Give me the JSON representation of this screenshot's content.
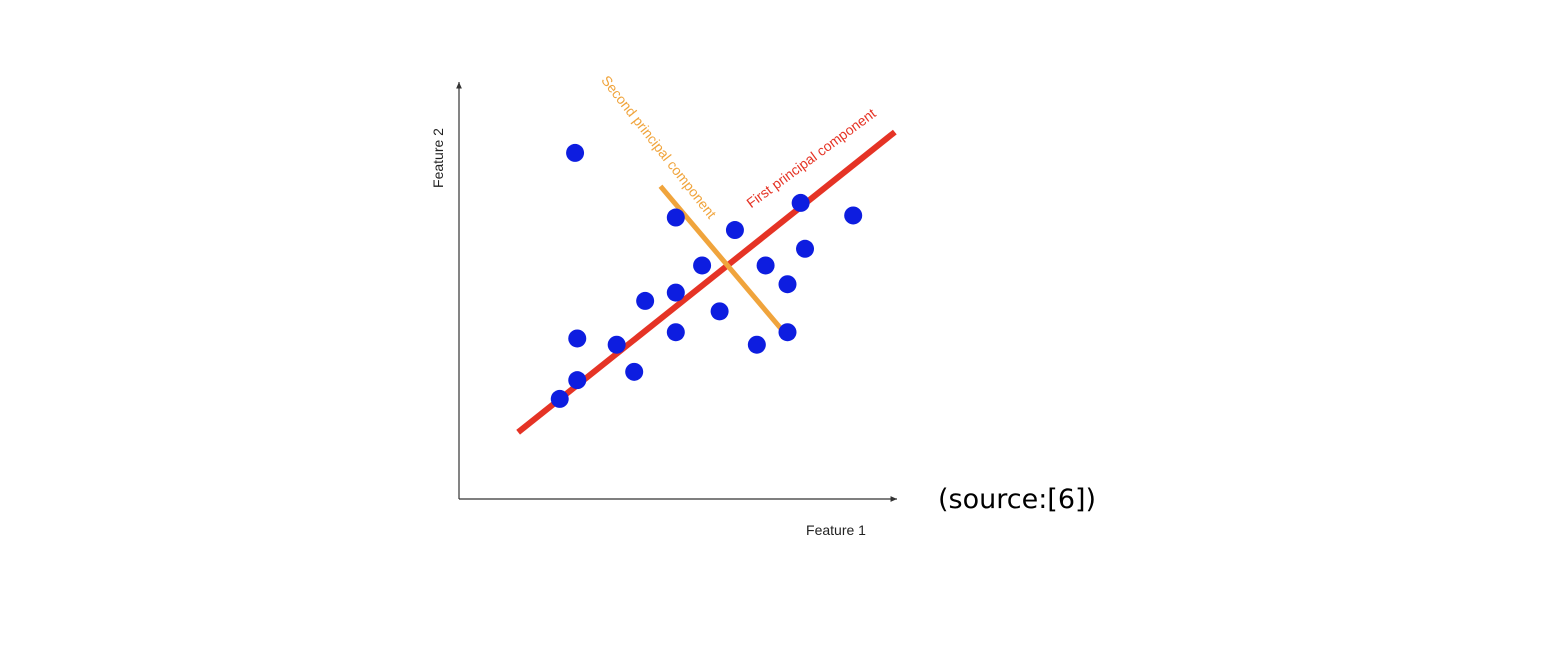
{
  "chart_data": {
    "type": "scatter",
    "xlabel": "Feature 1",
    "ylabel": "Feature 2",
    "xlim": [
      0,
      10
    ],
    "ylim": [
      0,
      10
    ],
    "grid": false,
    "points": [
      {
        "x": 2.3,
        "y": 2.4
      },
      {
        "x": 2.7,
        "y": 2.85
      },
      {
        "x": 2.65,
        "y": 8.3
      },
      {
        "x": 2.7,
        "y": 3.85
      },
      {
        "x": 3.6,
        "y": 3.7
      },
      {
        "x": 4.0,
        "y": 3.05
      },
      {
        "x": 4.25,
        "y": 4.75
      },
      {
        "x": 4.95,
        "y": 4.0
      },
      {
        "x": 4.95,
        "y": 4.95
      },
      {
        "x": 4.95,
        "y": 6.75
      },
      {
        "x": 5.55,
        "y": 5.6
      },
      {
        "x": 5.95,
        "y": 4.5
      },
      {
        "x": 6.3,
        "y": 6.45
      },
      {
        "x": 6.8,
        "y": 3.7
      },
      {
        "x": 7.0,
        "y": 5.6
      },
      {
        "x": 7.5,
        "y": 4.0
      },
      {
        "x": 7.5,
        "y": 5.15
      },
      {
        "x": 7.8,
        "y": 7.1
      },
      {
        "x": 7.9,
        "y": 6.0
      },
      {
        "x": 9.0,
        "y": 6.8
      }
    ],
    "lines": [
      {
        "name": "First principal component",
        "color": "#e53325",
        "x": [
          1.35,
          9.95
        ],
        "y": [
          1.6,
          8.8
        ]
      },
      {
        "name": "Second principal component",
        "color": "#f0a43c",
        "x": [
          4.6,
          7.5
        ],
        "y": [
          7.5,
          3.9
        ]
      }
    ],
    "point_color": "#0d1de0"
  },
  "note": "(source:[6])"
}
